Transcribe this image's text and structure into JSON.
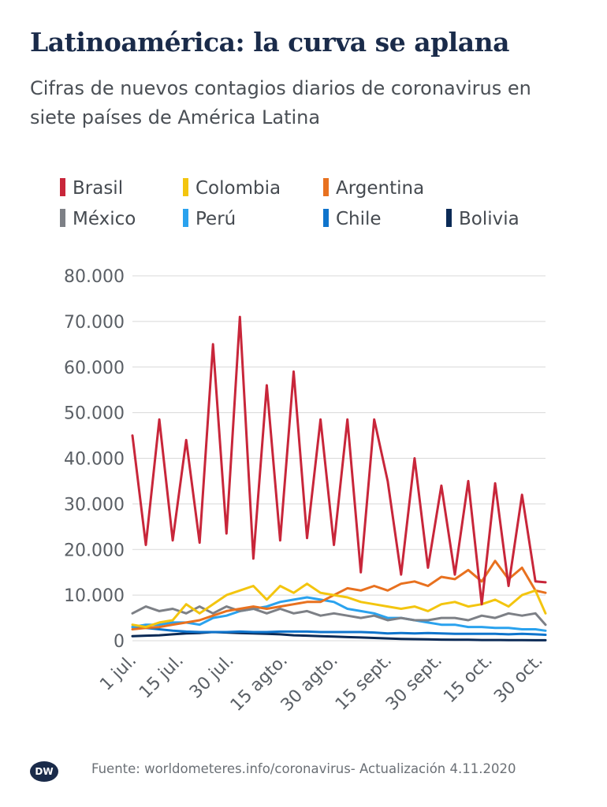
{
  "title": "Latinoamérica: la curva se aplana",
  "subtitle": "Cifras de nuevos contagios diarios de coronavirus en siete países de América Latina",
  "source": "Fuente: worldometeres.info/coronavirus- Actualización 4.11.2020",
  "logo_text": "DW",
  "chart_data": {
    "type": "line",
    "title": "Latinoamérica: la curva se aplana",
    "xlabel": "",
    "ylabel": "",
    "ylim": [
      0,
      80000
    ],
    "yticks": [
      0,
      10000,
      20000,
      30000,
      40000,
      50000,
      60000,
      70000,
      80000
    ],
    "ytick_labels": [
      "0",
      "10.000",
      "20.000",
      "30.000",
      "40.000",
      "50.000",
      "60.000",
      "70.000",
      "80.000"
    ],
    "xticks": [
      "2020-07-01",
      "2020-07-15",
      "2020-07-30",
      "2020-08-15",
      "2020-08-30",
      "2020-09-15",
      "2020-09-30",
      "2020-10-15",
      "2020-10-30"
    ],
    "xtick_labels": [
      "1 jul.",
      "15 jul.",
      "30 jul.",
      "15 agto.",
      "30 agto.",
      "15 sept.",
      "30 sept.",
      "15 oct.",
      "30 oct."
    ],
    "xlim": [
      "2020-07-01",
      "2020-11-01"
    ],
    "grid": "horizontal",
    "legend_position": "top",
    "x": [
      "2020-07-01",
      "2020-07-05",
      "2020-07-09",
      "2020-07-13",
      "2020-07-17",
      "2020-07-21",
      "2020-07-25",
      "2020-07-29",
      "2020-08-02",
      "2020-08-06",
      "2020-08-10",
      "2020-08-14",
      "2020-08-18",
      "2020-08-22",
      "2020-08-26",
      "2020-08-30",
      "2020-09-03",
      "2020-09-07",
      "2020-09-11",
      "2020-09-15",
      "2020-09-19",
      "2020-09-23",
      "2020-09-27",
      "2020-10-01",
      "2020-10-05",
      "2020-10-09",
      "2020-10-13",
      "2020-10-17",
      "2020-10-21",
      "2020-10-25",
      "2020-10-29",
      "2020-11-01"
    ],
    "series": [
      {
        "name": "Brasil",
        "color": "#c8263a",
        "values": [
          45000,
          21000,
          48500,
          22000,
          44000,
          21500,
          65000,
          23500,
          71000,
          18000,
          56000,
          22000,
          59000,
          22500,
          48500,
          21000,
          48500,
          15000,
          48500,
          35000,
          14500,
          40000,
          16000,
          34000,
          14500,
          35000,
          8000,
          34500,
          12000,
          32000,
          13000,
          12800
        ]
      },
      {
        "name": "Colombia",
        "color": "#f3c50f",
        "values": [
          3500,
          3000,
          4000,
          4500,
          8000,
          6000,
          8000,
          10000,
          11000,
          12000,
          9000,
          12000,
          10500,
          12500,
          10500,
          10000,
          9500,
          8500,
          8000,
          7500,
          7000,
          7500,
          6500,
          8000,
          8500,
          7500,
          8000,
          9000,
          7500,
          10000,
          11000,
          6000
        ]
      },
      {
        "name": "Argentina",
        "color": "#e8711f",
        "values": [
          2500,
          2800,
          3000,
          3500,
          4000,
          4500,
          5500,
          6500,
          7000,
          7500,
          7000,
          7500,
          8000,
          8500,
          8500,
          10000,
          11500,
          11000,
          12000,
          11000,
          12500,
          13000,
          12000,
          14000,
          13500,
          15500,
          13000,
          17500,
          13500,
          16000,
          11000,
          10500
        ]
      },
      {
        "name": "México",
        "color": "#7d8086",
        "values": [
          6000,
          7500,
          6500,
          7000,
          6000,
          7500,
          6000,
          7500,
          6500,
          7000,
          6000,
          7000,
          6000,
          6500,
          5500,
          6000,
          5500,
          5000,
          5500,
          4500,
          5000,
          4500,
          4500,
          5000,
          5000,
          4500,
          5500,
          5000,
          6000,
          5500,
          6000,
          3500
        ]
      },
      {
        "name": "Perú",
        "color": "#2aa2ee",
        "values": [
          3000,
          3500,
          3500,
          4000,
          4000,
          3500,
          5000,
          5500,
          6500,
          7000,
          7500,
          8500,
          9000,
          9500,
          9000,
          8500,
          7000,
          6500,
          6000,
          5000,
          5000,
          4500,
          4000,
          3500,
          3500,
          3000,
          3000,
          2800,
          2800,
          2500,
          2500,
          2200
        ]
      },
      {
        "name": "Chile",
        "color": "#0f74cc",
        "values": [
          3000,
          2800,
          2500,
          2200,
          2000,
          1900,
          1900,
          1900,
          2000,
          1900,
          1900,
          2000,
          2000,
          2000,
          1900,
          1900,
          1900,
          1900,
          1800,
          1600,
          1700,
          1600,
          1700,
          1600,
          1500,
          1500,
          1500,
          1500,
          1400,
          1500,
          1400,
          1300
        ]
      },
      {
        "name": "Bolivia",
        "color": "#0b2a56",
        "values": [
          1000,
          1100,
          1200,
          1400,
          1600,
          1700,
          1900,
          1800,
          1700,
          1600,
          1500,
          1400,
          1200,
          1100,
          1000,
          900,
          800,
          700,
          600,
          500,
          400,
          350,
          300,
          250,
          200,
          200,
          150,
          150,
          130,
          120,
          100,
          100
        ]
      }
    ]
  }
}
